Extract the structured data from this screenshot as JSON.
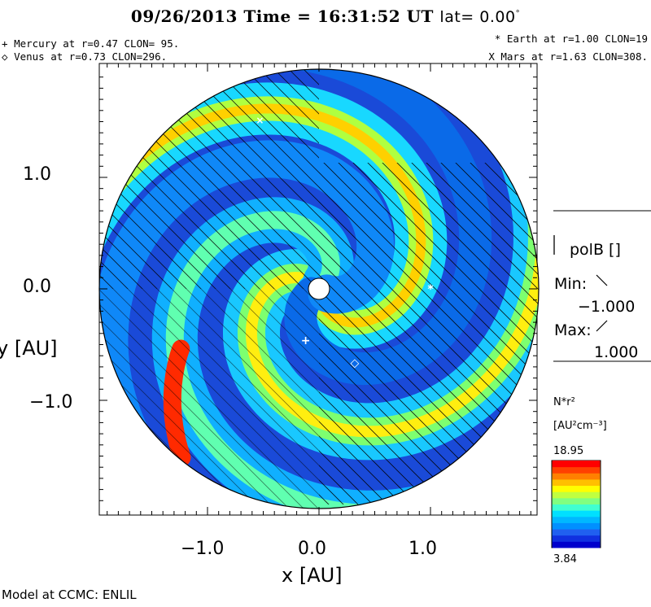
{
  "chart_data": {
    "type": "heatmap",
    "title": {
      "date": "09/26/2013",
      "time_label": "Time =",
      "time": "16:31:52 UT",
      "lat_label": "lat=",
      "lat_value": "0.00",
      "lat_unit": "°"
    },
    "xlabel": "x [AU]",
    "ylabel": "y [AU]",
    "xlim": [
      -2.0,
      2.0
    ],
    "ylim": [
      -2.0,
      2.0
    ],
    "x_ticks": [
      "−1.0",
      "0.0",
      "1.0"
    ],
    "y_ticks": [
      "1.0",
      "0.0",
      "−1.0"
    ],
    "planets": [
      {
        "symbol": "+",
        "text": "Mercury at r=0.47 CLON= 95.",
        "x": -0.12,
        "y": -0.46
      },
      {
        "symbol": "◇",
        "text": "Venus at r=0.73 CLON=296.",
        "x": 0.32,
        "y": -0.66
      },
      {
        "symbol": "*",
        "text": "Earth at  r=1.00 CLON=19",
        "x": 1.0,
        "y": 0.0
      },
      {
        "symbol": "X",
        "text": "Mars at r=1.63 CLON=308.",
        "x": -0.53,
        "y": 1.52
      }
    ],
    "polarity": {
      "label": "polB []",
      "min_label": "Min:",
      "min_value": "−1.000",
      "max_label": "Max:",
      "max_value": "1.000"
    },
    "colorbar": {
      "quantity": "N*r²",
      "units": "[AU²cm⁻³]",
      "max": "18.95",
      "min": "3.84",
      "colors": [
        "#0000cc",
        "#1030e0",
        "#2060f0",
        "#0090ff",
        "#00b8ff",
        "#00e0ff",
        "#40ffd0",
        "#80ff80",
        "#c0ff40",
        "#ffff00",
        "#ffc000",
        "#ff8000",
        "#ff4000",
        "#ff0000"
      ]
    },
    "credit": "Model at CCMC: ENLIL"
  }
}
